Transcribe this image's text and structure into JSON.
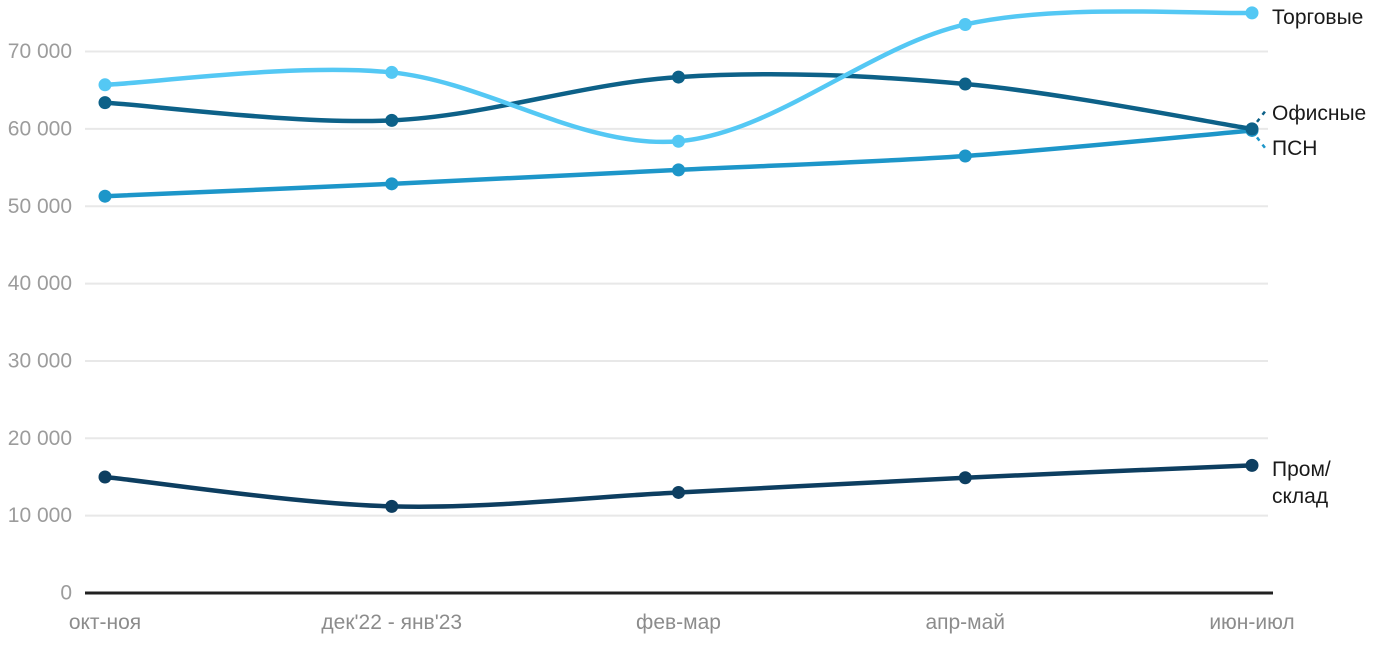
{
  "chart_data": {
    "type": "line",
    "title": "",
    "xlabel": "",
    "ylabel": "",
    "categories": [
      "окт-ноя",
      "дек'22 - янв'23",
      "фев-мар",
      "апр-май",
      "июн-июл"
    ],
    "series": [
      {
        "id": "torgovye",
        "name": "Торговые",
        "color": "#54C8F4",
        "values": [
          65700,
          67300,
          58400,
          73500,
          75000
        ]
      },
      {
        "id": "ofisnye",
        "name": "Офисные",
        "color": "#0D6188",
        "values": [
          63400,
          61100,
          66700,
          65800,
          60000
        ]
      },
      {
        "id": "psn",
        "name": "ПСН",
        "color": "#1D96C9",
        "values": [
          51300,
          52900,
          54700,
          56500,
          59800
        ]
      },
      {
        "id": "prom-sklad",
        "name": "Пром/склад",
        "color": "#0D3E60",
        "values": [
          15000,
          11200,
          13000,
          14900,
          16500
        ]
      }
    ],
    "ylim": [
      0,
      75000
    ],
    "yticks": [
      0,
      10000,
      20000,
      30000,
      40000,
      50000,
      60000,
      70000
    ],
    "ytick_labels": [
      "0",
      "10 000",
      "20 000",
      "30 000",
      "40 000",
      "50 000",
      "60 000",
      "70 000"
    ],
    "grid": true,
    "line_smoothing": true,
    "legend_position": "right-inline"
  },
  "right_labels": [
    {
      "id": "torgovye",
      "text": "Торговые"
    },
    {
      "id": "ofisnye",
      "text": "Офисные"
    },
    {
      "id": "psn",
      "text": "ПСН"
    },
    {
      "id": "prom-sklad",
      "text": "Пром/\nсклад"
    }
  ],
  "colors": {
    "background": "#ffffff",
    "gridline": "#E8E8E8",
    "axis_line": "#212121",
    "y_tick_text": "#9C9C9C",
    "x_tick_text": "#8C8C8C",
    "series_label_text": "#1A1A1A"
  }
}
